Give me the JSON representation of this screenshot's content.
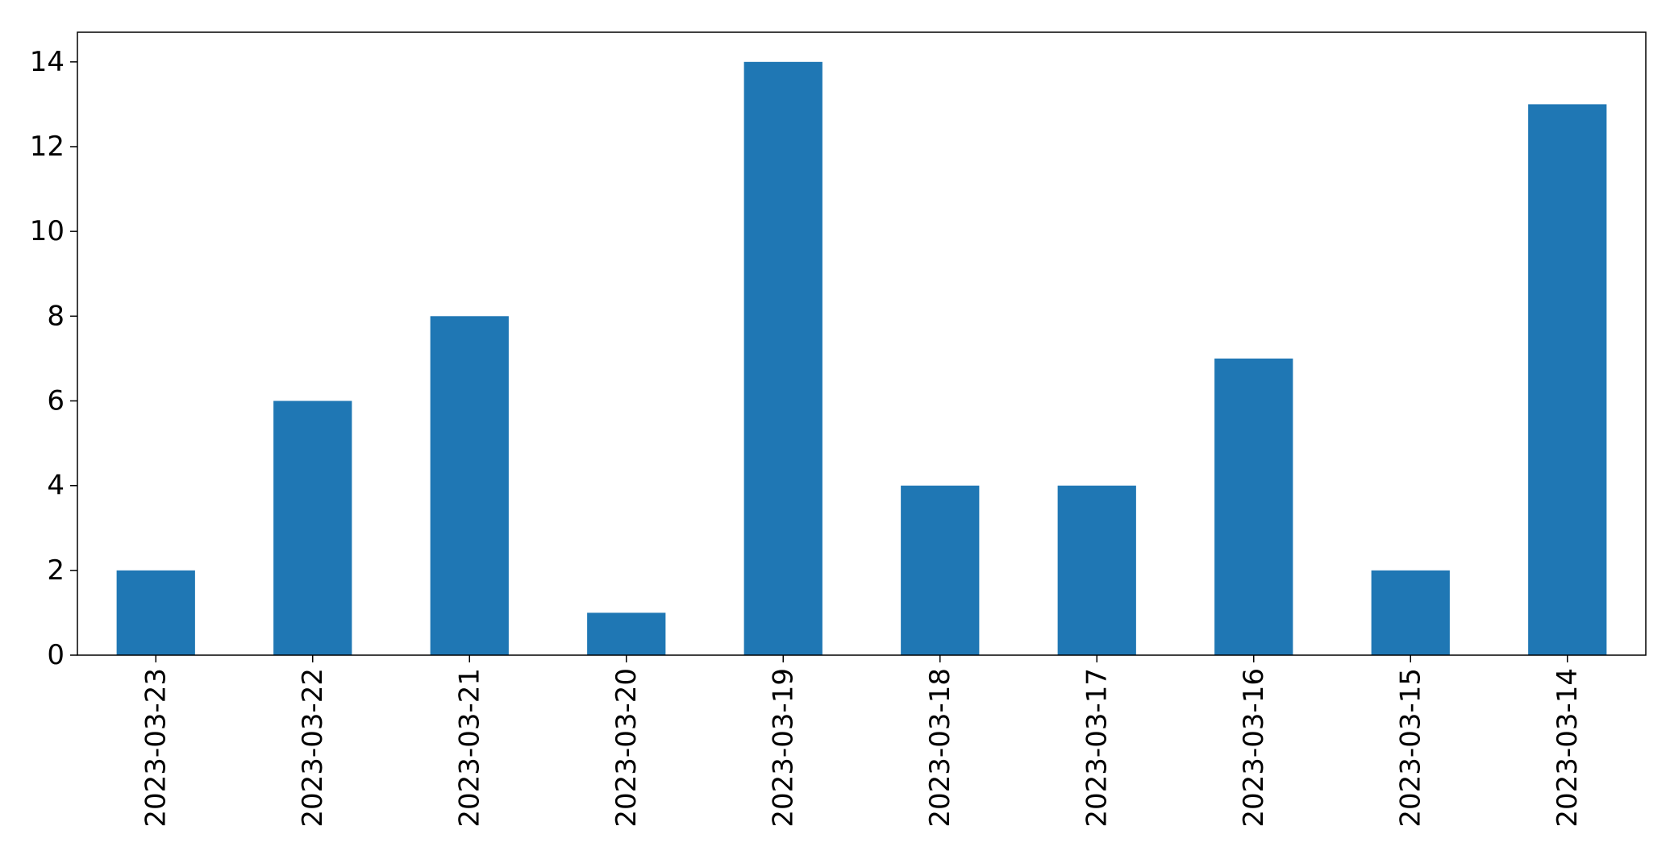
{
  "chart_data": {
    "type": "bar",
    "categories": [
      "2023-03-23",
      "2023-03-22",
      "2023-03-21",
      "2023-03-20",
      "2023-03-19",
      "2023-03-18",
      "2023-03-17",
      "2023-03-16",
      "2023-03-15",
      "2023-03-14"
    ],
    "values": [
      2,
      6,
      8,
      1,
      14,
      4,
      4,
      7,
      2,
      13
    ],
    "title": "",
    "xlabel": "",
    "ylabel": "",
    "ylim": [
      0,
      14.7
    ],
    "yticks": [
      0,
      2,
      4,
      6,
      8,
      10,
      12,
      14
    ],
    "grid": false,
    "legend": "none",
    "bar_color": "#1f77b4",
    "x_tick_rotation": "vertical"
  }
}
